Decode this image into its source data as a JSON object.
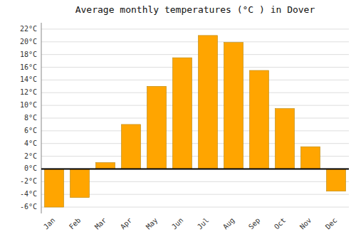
{
  "chart_data": {
    "type": "bar",
    "title": "Average monthly temperatures (°C ) in Dover",
    "categories": [
      "Jan",
      "Feb",
      "Mar",
      "Apr",
      "May",
      "Jun",
      "Jul",
      "Aug",
      "Sep",
      "Oct",
      "Nov",
      "Dec"
    ],
    "values": [
      -6.0,
      -4.5,
      1.0,
      7.0,
      13.0,
      17.5,
      21.0,
      19.9,
      15.5,
      9.5,
      3.5,
      -3.5
    ],
    "color": "#FFA500",
    "ylim": [
      -7,
      23
    ],
    "yticks": [
      {
        "value": -6,
        "label": "-6°C"
      },
      {
        "value": -4,
        "label": "-4°C"
      },
      {
        "value": -2,
        "label": "-2°C"
      },
      {
        "value": 0,
        "label": "0°C"
      },
      {
        "value": 2,
        "label": "2°C"
      },
      {
        "value": 4,
        "label": "4°C"
      },
      {
        "value": 6,
        "label": "6°C"
      },
      {
        "value": 8,
        "label": "8°C"
      },
      {
        "value": 10,
        "label": "10°C"
      },
      {
        "value": 12,
        "label": "12°C"
      },
      {
        "value": 14,
        "label": "14°C"
      },
      {
        "value": 16,
        "label": "16°C"
      },
      {
        "value": 18,
        "label": "18°C"
      },
      {
        "value": 20,
        "label": "20°C"
      },
      {
        "value": 22,
        "label": "22°C"
      }
    ],
    "grid": true
  }
}
